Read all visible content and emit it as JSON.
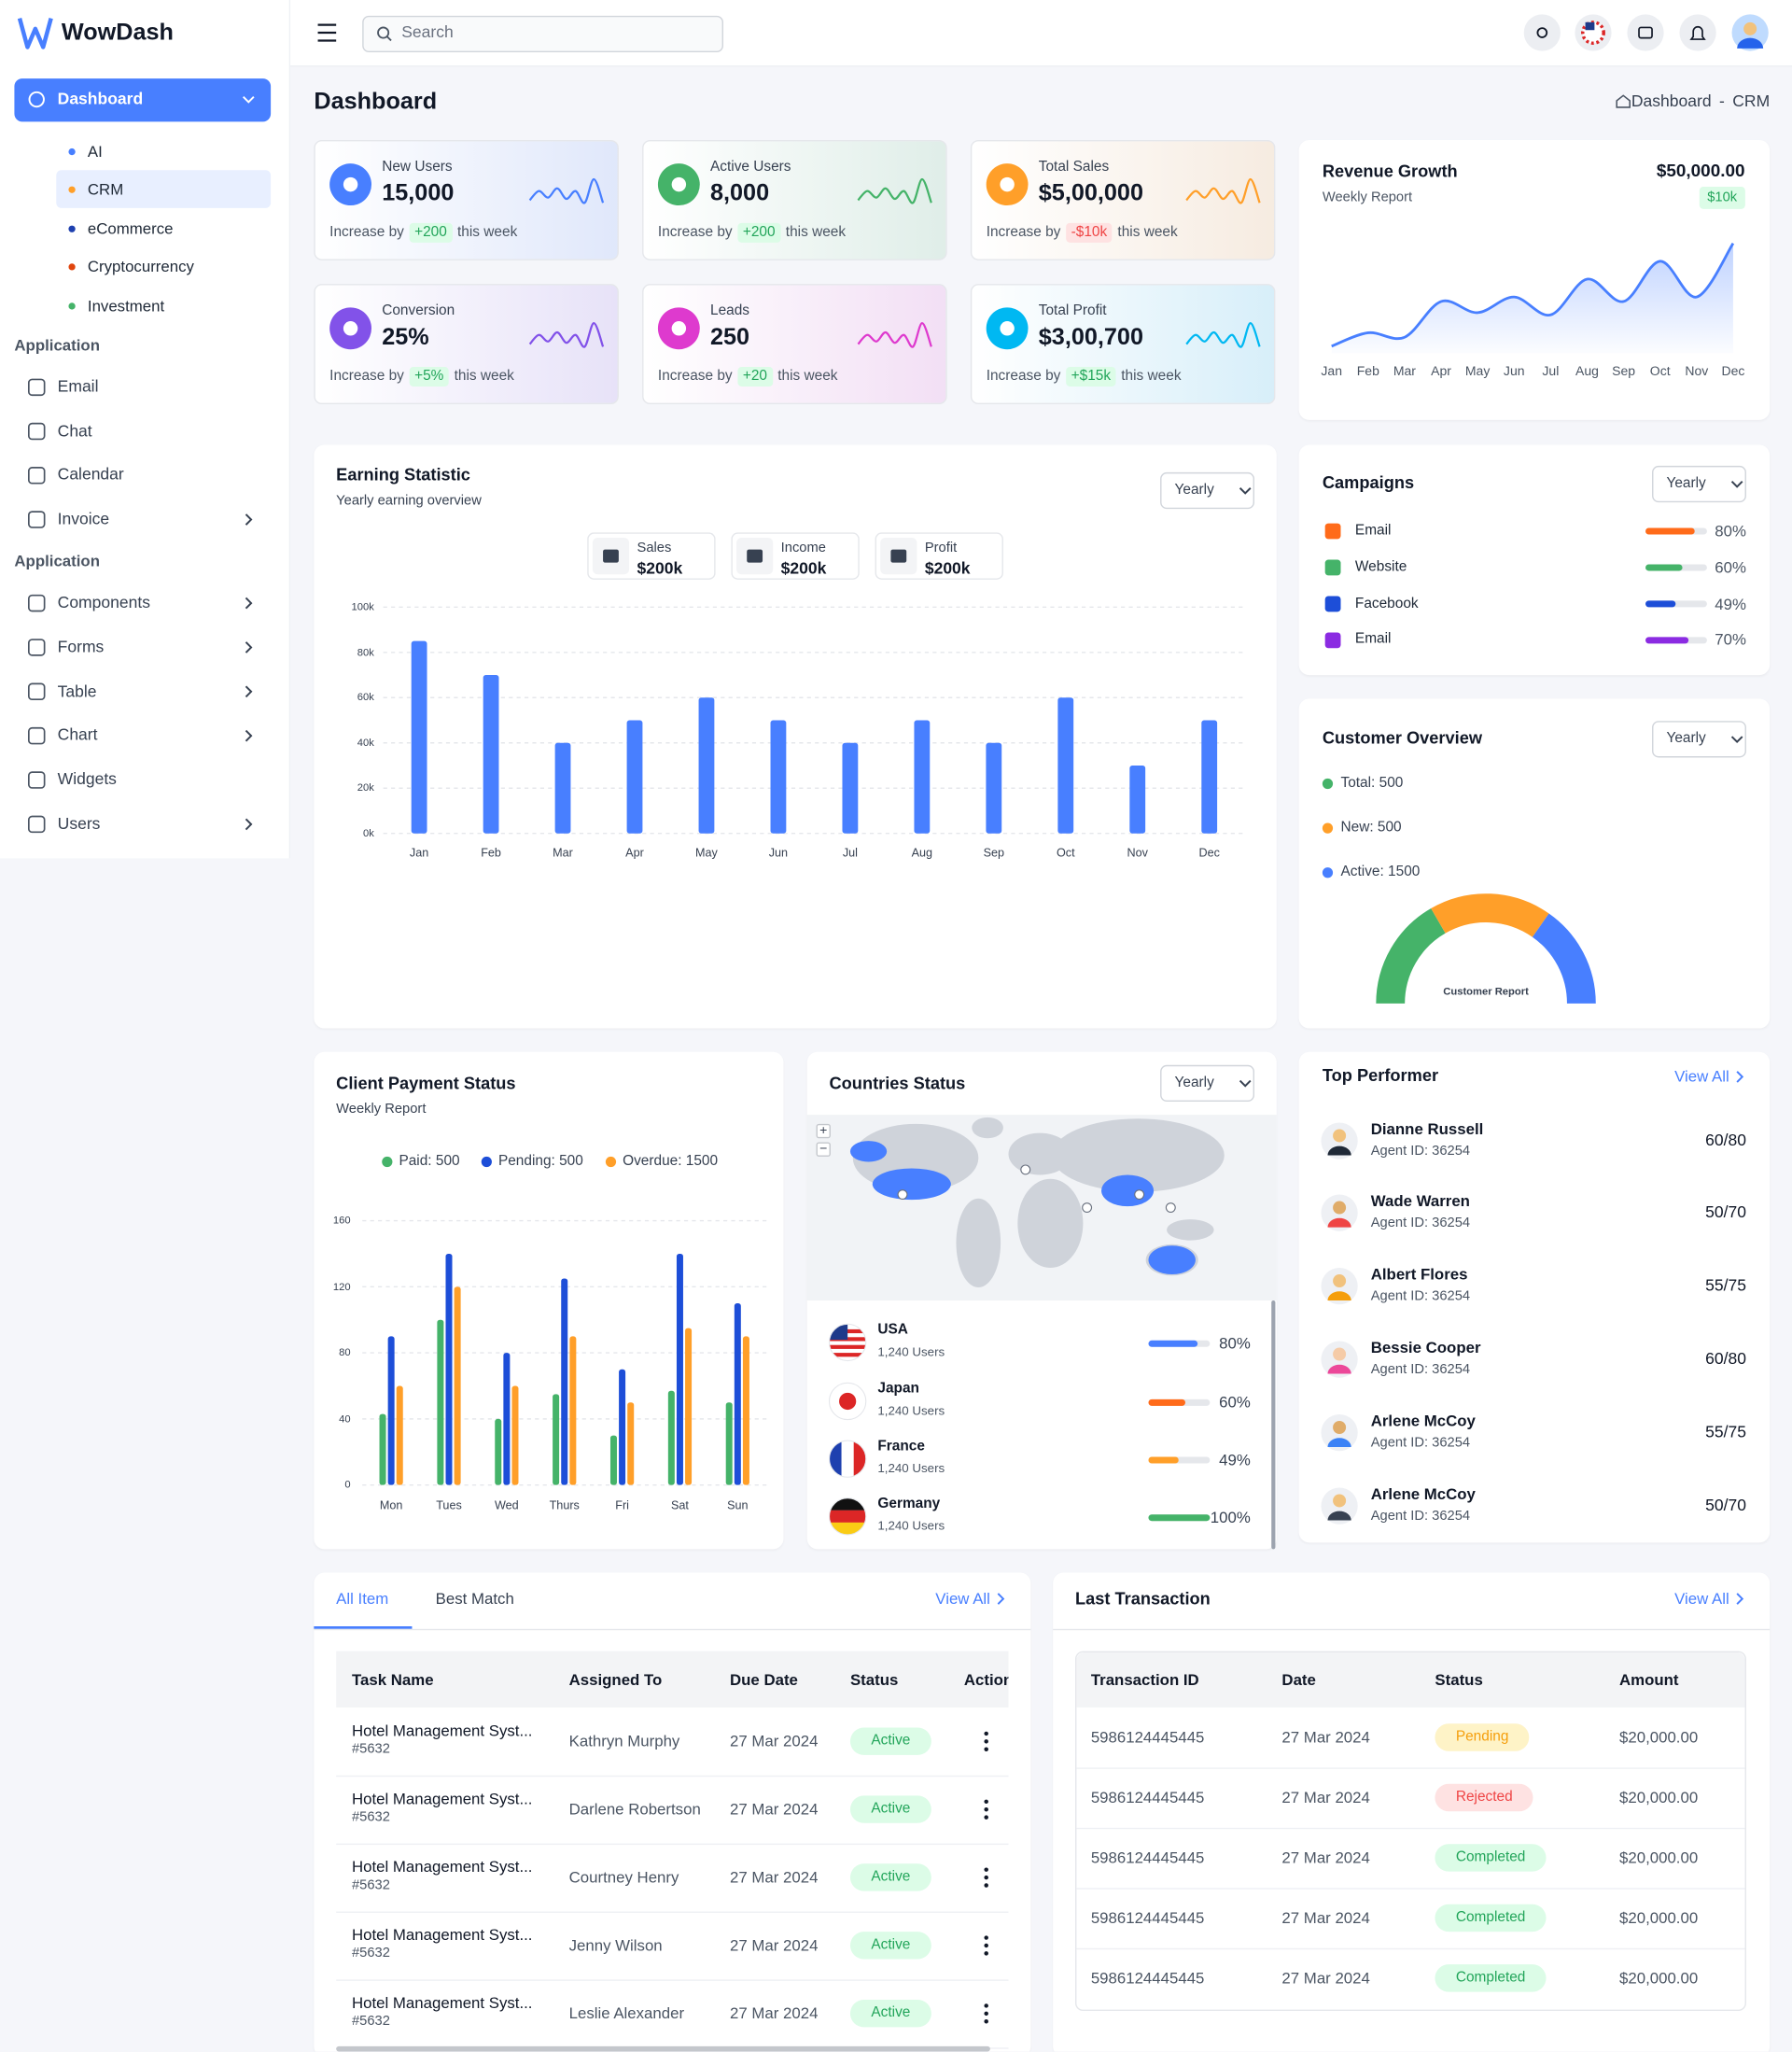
{
  "sidebar": {
    "brand": "WowDash",
    "menu_active": "Dashboard",
    "submenu_selected": 1,
    "submenu": [
      {
        "label": "AI",
        "color": "#487fff"
      },
      {
        "label": "CRM",
        "color": "#ff9f29"
      },
      {
        "label": "eCommerce",
        "color": "#1e40af"
      },
      {
        "label": "Cryptocurrency",
        "color": "#e0450e"
      },
      {
        "label": "Investment",
        "color": "#45b369"
      }
    ],
    "sections": [
      {
        "heading": "Application",
        "items": [
          {
            "label": "Email",
            "arrow": false
          },
          {
            "label": "Chat",
            "arrow": false
          },
          {
            "label": "Calendar",
            "arrow": false
          },
          {
            "label": "Invoice",
            "arrow": true
          }
        ]
      },
      {
        "heading": "Application",
        "items": [
          {
            "label": "Components",
            "arrow": true
          },
          {
            "label": "Forms",
            "arrow": true
          },
          {
            "label": "Table",
            "arrow": true
          },
          {
            "label": "Chart",
            "arrow": true
          },
          {
            "label": "Widgets",
            "arrow": false
          },
          {
            "label": "Users",
            "arrow": true
          }
        ]
      }
    ]
  },
  "topbar": {
    "search_placeholder": "Search"
  },
  "header": {
    "title": "Dashboard",
    "breadcrumb": [
      "Dashboard",
      "CRM"
    ],
    "separator": "-"
  },
  "stat_cards": [
    {
      "label": "New Users",
      "value": "15,000",
      "note_prefix": "Increase by",
      "change": "+200",
      "note_suffix": "this week",
      "tone": "up",
      "color": "#487fff"
    },
    {
      "label": "Active Users",
      "value": "8,000",
      "note_prefix": "Increase by",
      "change": "+200",
      "note_suffix": "this week",
      "tone": "up",
      "color": "#45b369"
    },
    {
      "label": "Total Sales",
      "value": "$5,00,000",
      "note_prefix": "Increase by",
      "change": "-$10k",
      "note_suffix": "this week",
      "tone": "down",
      "color": "#ff9f29"
    },
    {
      "label": "Conversion",
      "value": "25%",
      "note_prefix": "Increase by",
      "change": "+5%",
      "note_suffix": "this week",
      "tone": "up",
      "color": "#8252e9"
    },
    {
      "label": "Leads",
      "value": "250",
      "note_prefix": "Increase by",
      "change": "+20",
      "note_suffix": "this week",
      "tone": "up",
      "color": "#de3ace"
    },
    {
      "label": "Total Profit",
      "value": "$3,00,700",
      "note_prefix": "Increase by",
      "change": "+$15k",
      "note_suffix": "this week",
      "tone": "up",
      "color": "#00b8f2"
    }
  ],
  "revenue_growth": {
    "title": "Revenue Growth",
    "subtitle": "Weekly Report",
    "total": "$50,000.00",
    "badge": "$10k",
    "chart": {
      "type": "line",
      "color": "#487fff",
      "categories": [
        "Jan",
        "Feb",
        "Mar",
        "Apr",
        "May",
        "Jun",
        "Jul",
        "Aug",
        "Sep",
        "Oct",
        "Nov",
        "Dec"
      ],
      "values": [
        2,
        8,
        6,
        22,
        17,
        24,
        16,
        32,
        22,
        40,
        24,
        48
      ]
    }
  },
  "earning_statistic": {
    "title": "Earning Statistic",
    "subtitle": "Yearly earning overview",
    "period": "Yearly",
    "summary": [
      {
        "label": "Sales",
        "value": "$200k"
      },
      {
        "label": "Income",
        "value": "$200k"
      },
      {
        "label": "Profit",
        "value": "$200k"
      }
    ],
    "chart": {
      "type": "bar",
      "color": "#487fff",
      "categories": [
        "Jan",
        "Feb",
        "Mar",
        "Apr",
        "May",
        "Jun",
        "Jul",
        "Aug",
        "Sep",
        "Oct",
        "Nov",
        "Dec"
      ],
      "values": [
        85000,
        70000,
        40000,
        50000,
        60000,
        50000,
        40000,
        50000,
        40000,
        60000,
        30000,
        50000
      ],
      "ylim": [
        0,
        100000
      ],
      "yticks": [
        {
          "value": 0,
          "label": "0k"
        },
        {
          "value": 20000,
          "label": "20k"
        },
        {
          "value": 40000,
          "label": "40k"
        },
        {
          "value": 60000,
          "label": "60k"
        },
        {
          "value": 80000,
          "label": "80k"
        },
        {
          "value": 100000,
          "label": "100k"
        }
      ],
      "grid": true
    }
  },
  "campaigns": {
    "title": "Campaigns",
    "period": "Yearly",
    "items": [
      {
        "name": "Email",
        "value": 80,
        "value_label": "80%",
        "color": "#ff6b1a"
      },
      {
        "name": "Website",
        "value": 60,
        "value_label": "60%",
        "color": "#45b369"
      },
      {
        "name": "Facebook",
        "value": 49,
        "value_label": "49%",
        "color": "#1d4ed8"
      },
      {
        "name": "Email",
        "value": 70,
        "value_label": "70%",
        "color": "#8b2be2"
      }
    ]
  },
  "customer_overview": {
    "title": "Customer Overview",
    "period": "Yearly",
    "legend": [
      {
        "label": "Total: 500",
        "color": "#45b369"
      },
      {
        "label": "New: 500",
        "color": "#ff9f29"
      },
      {
        "label": "Active: 1500",
        "color": "#487fff"
      }
    ],
    "gauge_label": "Customer Report"
  },
  "client_payment_status": {
    "title": "Client Payment Status",
    "subtitle": "Weekly Report",
    "chart": {
      "type": "grouped-bar",
      "categories": [
        "Mon",
        "Tues",
        "Wed",
        "Thurs",
        "Fri",
        "Sat",
        "Sun"
      ],
      "series": [
        {
          "name": "Paid: 500",
          "color": "#45b369",
          "values": [
            43,
            100,
            40,
            55,
            30,
            57,
            50
          ]
        },
        {
          "name": "Pending: 500",
          "color": "#1d4ed8",
          "values": [
            90,
            140,
            80,
            125,
            70,
            140,
            110
          ]
        },
        {
          "name": "Overdue: 1500",
          "color": "#ff9f29",
          "values": [
            60,
            120,
            60,
            90,
            50,
            95,
            90
          ]
        }
      ],
      "ylim": [
        0,
        160
      ],
      "yticks": [
        0,
        40,
        80,
        120,
        160
      ],
      "grid": true
    }
  },
  "countries_status": {
    "title": "Countries Status",
    "period": "Yearly",
    "map_controls": [
      "+",
      "−"
    ],
    "countries": [
      {
        "name": "USA",
        "users": "1,240 Users",
        "value": 80,
        "value_label": "80%",
        "color": "#487fff"
      },
      {
        "name": "Japan",
        "users": "1,240 Users",
        "value": 60,
        "value_label": "60%",
        "color": "#ff6b1a"
      },
      {
        "name": "France",
        "users": "1,240 Users",
        "value": 49,
        "value_label": "49%",
        "color": "#ff9f29"
      },
      {
        "name": "Germany",
        "users": "1,240 Users",
        "value": 100,
        "value_label": "100%",
        "color": "#45b369"
      }
    ]
  },
  "top_performer": {
    "title": "Top Performer",
    "view_all": "View All",
    "people": [
      {
        "name": "Dianne Russell",
        "agent_id": "Agent ID: 36254",
        "score": "60/80"
      },
      {
        "name": "Wade Warren",
        "agent_id": "Agent ID: 36254",
        "score": "50/70"
      },
      {
        "name": "Albert Flores",
        "agent_id": "Agent ID: 36254",
        "score": "55/75"
      },
      {
        "name": "Bessie Cooper",
        "agent_id": "Agent ID: 36254",
        "score": "60/80"
      },
      {
        "name": "Arlene McCoy",
        "agent_id": "Agent ID: 36254",
        "score": "55/75"
      },
      {
        "name": "Arlene McCoy",
        "agent_id": "Agent ID: 36254",
        "score": "50/70"
      }
    ]
  },
  "task_table": {
    "tabs": [
      "All Item",
      "Best Match"
    ],
    "active_tab": 0,
    "view_all": "View All",
    "columns": [
      "Task Name",
      "Assigned To",
      "Due Date",
      "Status",
      "Action"
    ],
    "rows": [
      {
        "task": "Hotel Management Syst...",
        "id": "#5632",
        "assigned": "Kathryn Murphy",
        "due": "27 Mar 2024",
        "status": "Active",
        "tone": "success"
      },
      {
        "task": "Hotel Management Syst...",
        "id": "#5632",
        "assigned": "Darlene Robertson",
        "due": "27 Mar 2024",
        "status": "Active",
        "tone": "success"
      },
      {
        "task": "Hotel Management Syst...",
        "id": "#5632",
        "assigned": "Courtney Henry",
        "due": "27 Mar 2024",
        "status": "Active",
        "tone": "success"
      },
      {
        "task": "Hotel Management Syst...",
        "id": "#5632",
        "assigned": "Jenny Wilson",
        "due": "27 Mar 2024",
        "status": "Active",
        "tone": "success"
      },
      {
        "task": "Hotel Management Syst...",
        "id": "#5632",
        "assigned": "Leslie Alexander",
        "due": "27 Mar 2024",
        "status": "Active",
        "tone": "success"
      }
    ]
  },
  "transactions": {
    "title": "Last Transaction",
    "view_all": "View All",
    "columns": [
      "Transaction ID",
      "Date",
      "Status",
      "Amount"
    ],
    "rows": [
      {
        "id": "5986124445445",
        "date": "27 Mar 2024",
        "status": "Pending",
        "amount": "$20,000.00",
        "tone": "warning"
      },
      {
        "id": "5986124445445",
        "date": "27 Mar 2024",
        "status": "Rejected",
        "amount": "$20,000.00",
        "tone": "danger"
      },
      {
        "id": "5986124445445",
        "date": "27 Mar 2024",
        "status": "Completed",
        "amount": "$20,000.00",
        "tone": "success"
      },
      {
        "id": "5986124445445",
        "date": "27 Mar 2024",
        "status": "Completed",
        "amount": "$20,000.00",
        "tone": "success"
      },
      {
        "id": "5986124445445",
        "date": "27 Mar 2024",
        "status": "Completed",
        "amount": "$20,000.00",
        "tone": "success"
      }
    ]
  }
}
